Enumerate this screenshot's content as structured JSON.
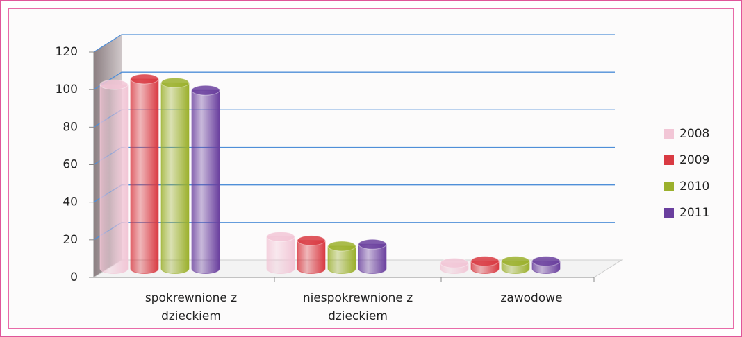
{
  "chart_data": {
    "type": "bar3d",
    "categories": [
      "spokrewnione z dzieckiem",
      "niespokrewnione z dzieckiem",
      "zawodowe"
    ],
    "series": [
      {
        "name": "2008",
        "color": "#f2c6d6",
        "values": [
          98,
          17,
          3
        ]
      },
      {
        "name": "2009",
        "color": "#d93a42",
        "values": [
          101,
          15,
          4
        ]
      },
      {
        "name": "2010",
        "color": "#9bb02c",
        "values": [
          99,
          12,
          4
        ]
      },
      {
        "name": "2011",
        "color": "#6a3f9e",
        "values": [
          95,
          13,
          4
        ]
      }
    ],
    "ylim": [
      0,
      120
    ],
    "yticks": [
      0,
      20,
      40,
      60,
      80,
      100,
      120
    ],
    "grid": true,
    "legend": "right"
  }
}
